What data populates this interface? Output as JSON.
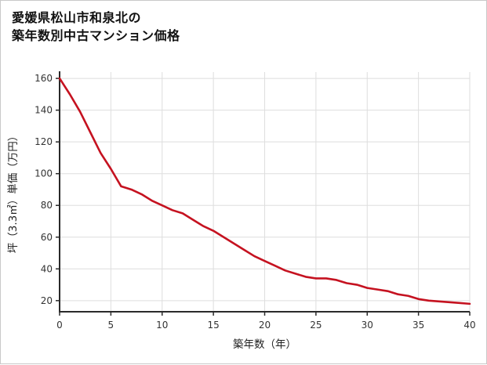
{
  "title": {
    "line1": "愛媛県松山市和泉北の",
    "line2": "築年数別中古マンション価格"
  },
  "chart_data": {
    "type": "line",
    "title": "愛媛県松山市和泉北の築年数別中古マンション価格",
    "xlabel": "築年数（年）",
    "ylabel": "坪（3.3㎡）単価（万円）",
    "x": [
      0,
      1,
      2,
      3,
      4,
      5,
      6,
      7,
      8,
      9,
      10,
      11,
      12,
      13,
      14,
      15,
      16,
      17,
      18,
      19,
      20,
      21,
      22,
      23,
      24,
      25,
      26,
      27,
      28,
      29,
      30,
      31,
      32,
      33,
      34,
      35,
      36,
      37,
      38,
      39,
      40
    ],
    "values": [
      160,
      150,
      139,
      126,
      113,
      103,
      92,
      90,
      87,
      83,
      80,
      77,
      75,
      71,
      67,
      64,
      60,
      56,
      52,
      48,
      45,
      42,
      39,
      37,
      35,
      34,
      34,
      33,
      31,
      30,
      28,
      27,
      26,
      24,
      23,
      21,
      20,
      19.5,
      19,
      18.5,
      18
    ],
    "xlim": [
      0,
      40
    ],
    "ylim": [
      13,
      164
    ],
    "xticks": [
      0,
      5,
      10,
      15,
      20,
      25,
      30,
      35,
      40
    ],
    "yticks": [
      20,
      40,
      60,
      80,
      100,
      120,
      140,
      160
    ],
    "grid": true,
    "legend": "none",
    "line_color": "#c51220",
    "grid_color": "#dedede",
    "axis_color": "#2a2a2a",
    "text_color": "#333333"
  }
}
